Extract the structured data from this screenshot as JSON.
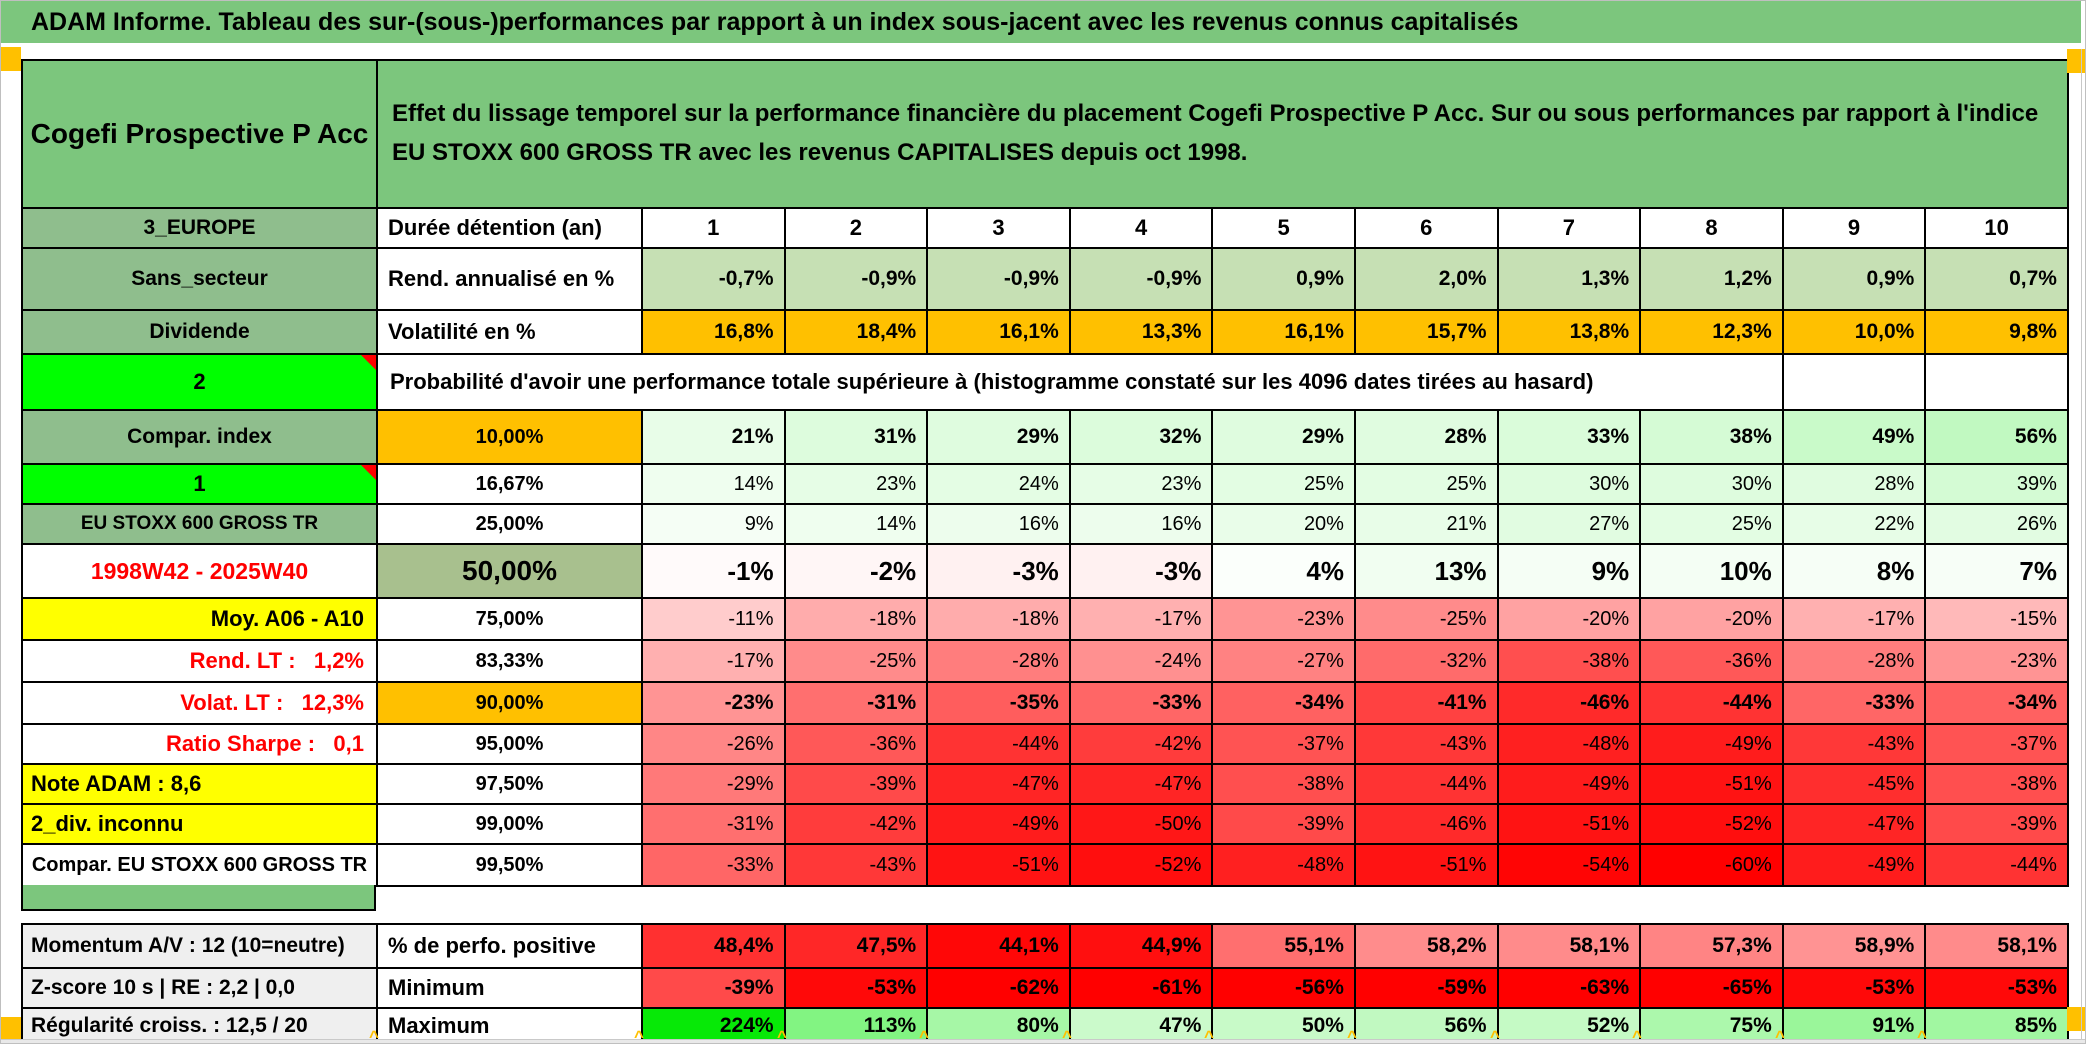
{
  "palette": {
    "title_green": "#7CC67D",
    "label_green": "#8FBE8D",
    "sage_green": "#A8C08E",
    "bright_green": "#00FF00",
    "orange": "#FFC000",
    "yellow": "#FFFF00",
    "red": "#FF0000",
    "gray": "#EFEFEF",
    "rend_row_green": "#C6E0B4",
    "neg_scale_end": "#FF0000",
    "pos_scale_end": "#00E800"
  },
  "title": "ADAM Informe. Tableau des sur-(sous-)performances par rapport à un index sous-jacent avec les revenus connus capitalisés",
  "header": {
    "fund": "Cogefi Prospective P Acc",
    "description": "Effet du lissage temporel sur la performance financière du placement Cogefi Prospective P Acc. Sur ou sous performances par rapport à l'indice EU STOXX 600 GROSS TR avec les revenus CAPITALISES depuis oct 1998."
  },
  "top_rows": [
    {
      "label": "3_EUROPE",
      "label_style": "lab-green",
      "metric": "Durée détention (an)",
      "value_style": "duree",
      "values": [
        "1",
        "2",
        "3",
        "4",
        "5",
        "6",
        "7",
        "8",
        "9",
        "10"
      ]
    },
    {
      "label": "Sans_secteur",
      "label_style": "lab-green",
      "metric": "Rend. annualisé en %",
      "value_style": "rend",
      "values": [
        "-0,7%",
        "-0,9%",
        "-0,9%",
        "-0,9%",
        "0,9%",
        "2,0%",
        "1,3%",
        "1,2%",
        "0,9%",
        "0,7%"
      ]
    },
    {
      "label": "Dividende",
      "label_style": "lab-green",
      "metric": "Volatilité en %",
      "value_style": "volat",
      "values": [
        "16,8%",
        "18,4%",
        "16,1%",
        "13,3%",
        "16,1%",
        "15,7%",
        "13,8%",
        "12,3%",
        "10,0%",
        "9,8%"
      ]
    }
  ],
  "prob_header": {
    "label": "2",
    "text": "Probabilité d'avoir une performance totale supérieure à (histogramme constaté sur les 4096 dates tirées au hasard)"
  },
  "prob_rows": [
    {
      "label": "Compar. index",
      "label_style": "lab-green",
      "threshold": "10,00%",
      "threshold_style": "thr",
      "threshold_bg": "orange",
      "bold": true,
      "values": [
        "21%",
        "31%",
        "29%",
        "32%",
        "29%",
        "28%",
        "33%",
        "38%",
        "49%",
        "56%"
      ]
    },
    {
      "label": "1",
      "label_style": "lab-bright",
      "marker": true,
      "threshold": "16,67%",
      "threshold_style": "thr",
      "values": [
        "14%",
        "23%",
        "24%",
        "23%",
        "25%",
        "25%",
        "30%",
        "30%",
        "28%",
        "39%"
      ]
    },
    {
      "label": "EU STOXX 600 GROSS TR",
      "label_style": "lab-green-sm",
      "threshold": "25,00%",
      "threshold_style": "thr",
      "values": [
        "9%",
        "14%",
        "16%",
        "16%",
        "20%",
        "21%",
        "27%",
        "25%",
        "22%",
        "26%"
      ]
    },
    {
      "label": "1998W42 - 2025W40",
      "label_style": "lab-red-center",
      "threshold": "50,00%",
      "threshold_style": "thr-big",
      "big": true,
      "values": [
        "-1%",
        "-2%",
        "-3%",
        "-3%",
        "4%",
        "13%",
        "9%",
        "10%",
        "8%",
        "7%"
      ]
    },
    {
      "label": "Moy. A06 - A10",
      "label_style": "lab-yellow-right",
      "threshold": "75,00%",
      "threshold_style": "thr",
      "values": [
        "-11%",
        "-18%",
        "-18%",
        "-17%",
        "-23%",
        "-25%",
        "-20%",
        "-20%",
        "-17%",
        "-15%"
      ]
    },
    {
      "label": "Rend. LT :   1,2%",
      "label_style": "lab-red-right",
      "threshold": "83,33%",
      "threshold_style": "thr",
      "values": [
        "-17%",
        "-25%",
        "-28%",
        "-24%",
        "-27%",
        "-32%",
        "-38%",
        "-36%",
        "-28%",
        "-23%"
      ]
    },
    {
      "label": "Volat. LT :   12,3%",
      "label_style": "lab-red-right",
      "threshold": "90,00%",
      "threshold_style": "thr",
      "threshold_bg": "orange",
      "bold": true,
      "values": [
        "-23%",
        "-31%",
        "-35%",
        "-33%",
        "-34%",
        "-41%",
        "-46%",
        "-44%",
        "-33%",
        "-34%"
      ]
    },
    {
      "label": "Ratio Sharpe :   0,1",
      "label_style": "lab-red-right",
      "threshold": "95,00%",
      "threshold_style": "thr",
      "values": [
        "-26%",
        "-36%",
        "-44%",
        "-42%",
        "-37%",
        "-43%",
        "-48%",
        "-49%",
        "-43%",
        "-37%"
      ]
    },
    {
      "label": "Note ADAM : 8,6",
      "label_style": "lab-yellow-left",
      "threshold": "97,50%",
      "threshold_style": "thr",
      "values": [
        "-29%",
        "-39%",
        "-47%",
        "-47%",
        "-38%",
        "-44%",
        "-49%",
        "-51%",
        "-45%",
        "-38%"
      ]
    },
    {
      "label": "2_div. inconnu",
      "label_style": "lab-yellow-left",
      "threshold": "99,00%",
      "threshold_style": "thr",
      "values": [
        "-31%",
        "-42%",
        "-49%",
        "-50%",
        "-39%",
        "-46%",
        "-51%",
        "-52%",
        "-47%",
        "-39%"
      ]
    },
    {
      "label": "Compar. EU STOXX 600 GROSS TR",
      "label_style": "lab-white-center-sm",
      "threshold": "99,50%",
      "threshold_style": "thr",
      "values": [
        "-33%",
        "-43%",
        "-51%",
        "-52%",
        "-48%",
        "-51%",
        "-54%",
        "-60%",
        "-49%",
        "-44%"
      ]
    }
  ],
  "bottom_rows": [
    {
      "label": "Momentum A/V : 12 (10=neutre)",
      "metric": "% de perfo. positive",
      "scale": "perfo",
      "values": [
        "48,4%",
        "47,5%",
        "44,1%",
        "44,9%",
        "55,1%",
        "58,2%",
        "58,1%",
        "57,3%",
        "58,9%",
        "58,1%"
      ]
    },
    {
      "label": "Z-score 10 s | RE : 2,2 | 0,0",
      "metric": "Minimum",
      "scale": "global",
      "values": [
        "-39%",
        "-53%",
        "-62%",
        "-61%",
        "-56%",
        "-59%",
        "-63%",
        "-65%",
        "-53%",
        "-53%"
      ]
    },
    {
      "label": "Régularité croiss. : 12,5 / 20",
      "metric": "Maximum",
      "scale": "global",
      "values": [
        "224%",
        "113%",
        "80%",
        "47%",
        "50%",
        "56%",
        "52%",
        "75%",
        "91%",
        "85%"
      ]
    }
  ],
  "marker_glyph": "^"
}
